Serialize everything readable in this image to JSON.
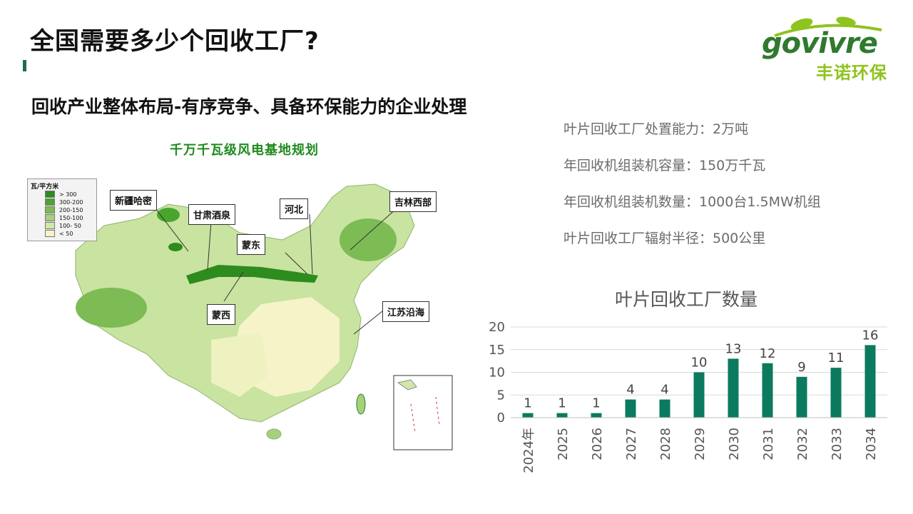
{
  "slide": {
    "title": "全国需要多少个回收工厂?",
    "subtitle": "回收产业整体布局-有序竞争、具备环保能力的企业处理"
  },
  "logo": {
    "wordmark": "govivre",
    "chinese": "丰诺环保"
  },
  "map": {
    "title": "千万千瓦级风电基地规划",
    "legend": {
      "header": "瓦/平方米",
      "items": [
        {
          "label": "> 300",
          "color": "#2e8b1e"
        },
        {
          "label": "300-200",
          "color": "#4aa52e"
        },
        {
          "label": "200-150",
          "color": "#7dbb55"
        },
        {
          "label": "150-100",
          "color": "#a6d07c"
        },
        {
          "label": "100- 50",
          "color": "#d3e8a8"
        },
        {
          "label": "< 50",
          "color": "#f6f3c8"
        }
      ]
    },
    "callouts": [
      {
        "id": "xinjiang",
        "label": "新疆哈密"
      },
      {
        "id": "gansu",
        "label": "甘肃酒泉"
      },
      {
        "id": "hebei",
        "label": "河北"
      },
      {
        "id": "jilin",
        "label": "吉林西部"
      },
      {
        "id": "mengdong",
        "label": "蒙东"
      },
      {
        "id": "mengxi",
        "label": "蒙西"
      },
      {
        "id": "jiangsu",
        "label": "江苏沿海"
      }
    ]
  },
  "stats": [
    "叶片回收工厂处置能力：2万吨",
    "年回收机组装机容量：150万千瓦",
    "年回收机组装机数量：1000台1.5MW机组",
    "叶片回收工厂辐射半径：500公里"
  ],
  "chart_data": {
    "type": "bar",
    "title": "叶片回收工厂数量",
    "categories": [
      "2024年",
      "2025",
      "2026",
      "2027",
      "2028",
      "2029",
      "2030",
      "2031",
      "2032",
      "2033",
      "2034"
    ],
    "values": [
      1,
      1,
      1,
      4,
      4,
      10,
      13,
      12,
      9,
      11,
      16
    ],
    "ylim": [
      0,
      20
    ],
    "yticks": [
      0,
      5,
      10,
      15,
      20
    ],
    "grid": true,
    "bar_color": "#0b7a5e",
    "xlabel": "",
    "ylabel": ""
  }
}
